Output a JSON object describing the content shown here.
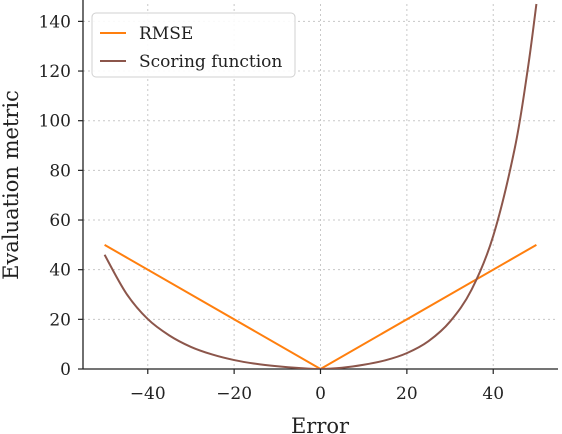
{
  "chart_data": {
    "type": "line",
    "title": "",
    "xlabel": "Error",
    "ylabel": "Evaluation metric",
    "xlim": [
      -55,
      55
    ],
    "ylim": [
      0,
      147
    ],
    "xticks": [
      -40,
      -20,
      0,
      20,
      40
    ],
    "xtick_labels": [
      "−40",
      "−20",
      "0",
      "20",
      "40"
    ],
    "yticks": [
      0,
      20,
      40,
      60,
      80,
      100,
      120,
      140
    ],
    "ytick_labels": [
      "0",
      "20",
      "40",
      "60",
      "80",
      "100",
      "120",
      "140"
    ],
    "grid": true,
    "legend_position": "top-left",
    "series": [
      {
        "name": "RMSE",
        "color": "#ff7f0e",
        "x": [
          -50,
          0,
          50
        ],
        "y": [
          50,
          0,
          50
        ]
      },
      {
        "name": "Scoring function",
        "color": "#8c564b",
        "x": [
          -50,
          -45,
          -40,
          -35,
          -30,
          -25,
          -20,
          -15,
          -10,
          -5,
          0,
          5,
          10,
          15,
          20,
          25,
          30,
          35,
          40,
          45,
          48,
          50
        ],
        "y": [
          46,
          30.5,
          20.1,
          13.5,
          8.9,
          5.8,
          3.6,
          2.1,
          1.1,
          0.4,
          0,
          0.5,
          1.7,
          3.5,
          6.4,
          11.2,
          19.1,
          32.0,
          53.6,
          89.0,
          120.8,
          147
        ]
      }
    ]
  }
}
